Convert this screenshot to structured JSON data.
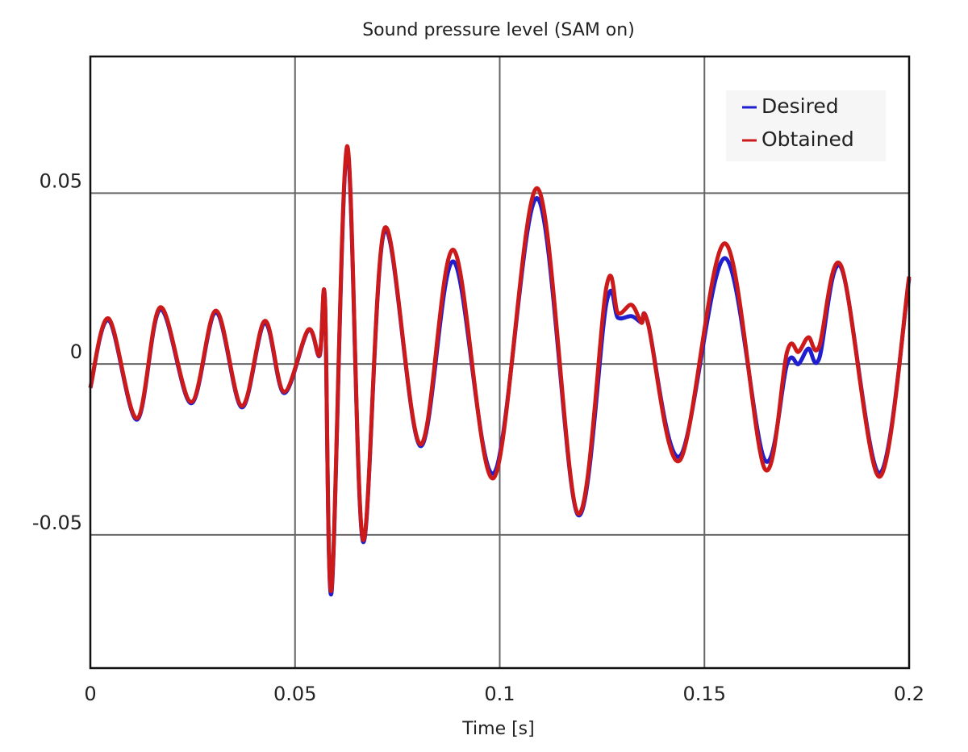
{
  "chart_data": {
    "type": "line",
    "title": "Sound pressure level (SAM on)",
    "x_label": "Time [s]",
    "x": [
      0,
      0.0045,
      0.0114,
      0.0171,
      0.0246,
      0.0307,
      0.037,
      0.0426,
      0.0473,
      0.0532,
      0.056,
      0.0573,
      0.0589,
      0.0627,
      0.0666,
      0.0719,
      0.0806,
      0.0887,
      0.0985,
      0.1092,
      0.119,
      0.1261,
      0.1289,
      0.1322,
      0.1346,
      0.1362,
      0.144,
      0.155,
      0.1647,
      0.1702,
      0.173,
      0.1754,
      0.178,
      0.1834,
      0.1927,
      0.2
    ],
    "series": [
      {
        "name": "Desired",
        "color": "#1f1fd0",
        "values": [
          -0.007,
          0.0128,
          -0.0163,
          0.016,
          -0.0115,
          0.015,
          -0.0127,
          0.012,
          -0.0085,
          0.0098,
          0.0024,
          0.0185,
          -0.067,
          0.0625,
          -0.052,
          0.039,
          -0.024,
          0.03,
          -0.032,
          0.0485,
          -0.044,
          0.018,
          0.0135,
          0.014,
          0.0121,
          0.012,
          -0.027,
          0.031,
          -0.028,
          0.0,
          0.0,
          0.0045,
          0.0015,
          0.0282,
          -0.032,
          0.025
        ]
      },
      {
        "name": "Obtained",
        "color": "#cc1a1a",
        "values": [
          -0.007,
          0.0133,
          -0.0159,
          0.0166,
          -0.0111,
          0.0156,
          -0.0123,
          0.0126,
          -0.0081,
          0.01,
          0.0026,
          0.019,
          -0.066,
          0.0637,
          -0.0514,
          0.0398,
          -0.0235,
          0.0334,
          -0.0334,
          0.0514,
          -0.0436,
          0.0228,
          0.0149,
          0.0173,
          0.0121,
          0.012,
          -0.0282,
          0.0353,
          -0.0306,
          0.0036,
          0.0036,
          0.0078,
          0.005,
          0.0287,
          -0.033,
          0.0256
        ]
      }
    ],
    "xlim": [
      0,
      0.2
    ],
    "xticks": [
      0,
      0.05,
      0.1,
      0.15,
      0.2
    ],
    "ylim": [
      -0.089,
      0.09
    ],
    "yticks": [
      -0.05,
      0,
      0.05
    ],
    "grid": true,
    "legend": "upper right"
  }
}
